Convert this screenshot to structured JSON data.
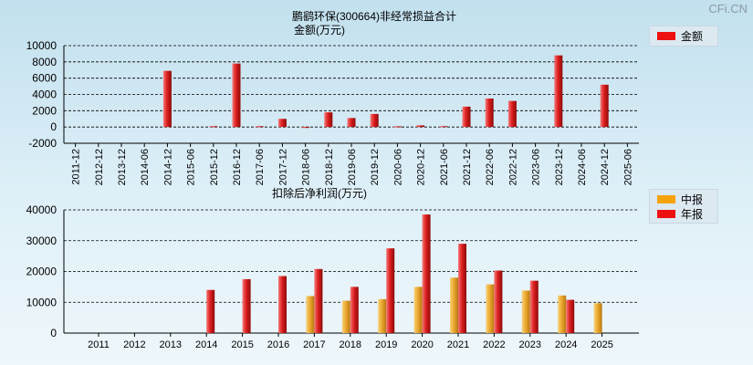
{
  "brand": "CFi.CN",
  "chart_data": [
    {
      "type": "bar",
      "title": "鹏鹞环保(300664)非经常损益合计",
      "subtitle": "金额(万元)",
      "categories": [
        "2011-12",
        "2012-12",
        "2013-12",
        "2014-06",
        "2014-12",
        "2015-06",
        "2015-12",
        "2016-12",
        "2017-06",
        "2017-12",
        "2018-06",
        "2018-12",
        "2019-06",
        "2019-12",
        "2020-06",
        "2020-12",
        "2021-06",
        "2021-12",
        "2022-06",
        "2022-12",
        "2023-06",
        "2023-12",
        "2024-06",
        "2024-12",
        "2025-06"
      ],
      "series": [
        {
          "name": "金额",
          "color": "#ee1111",
          "values": [
            null,
            null,
            null,
            null,
            6900,
            null,
            100,
            7800,
            100,
            1000,
            -50,
            1800,
            1100,
            1600,
            80,
            200,
            100,
            2500,
            3500,
            3200,
            null,
            8800,
            null,
            5200,
            null
          ]
        }
      ],
      "ylim": [
        -2000,
        10000
      ],
      "yticks": [
        -2000,
        0,
        2000,
        4000,
        6000,
        8000,
        10000
      ],
      "grid": true,
      "legend": "top-right"
    },
    {
      "type": "bar",
      "title": "扣除后净利润(万元)",
      "categories": [
        "2011",
        "2012",
        "2013",
        "2014",
        "2015",
        "2016",
        "2017",
        "2018",
        "2019",
        "2020",
        "2021",
        "2022",
        "2023",
        "2024",
        "2025"
      ],
      "series": [
        {
          "name": "中报",
          "color": "#f5a20a",
          "values": [
            null,
            null,
            null,
            null,
            null,
            null,
            12000,
            10500,
            11000,
            15000,
            18000,
            15800,
            13800,
            12200,
            9700
          ]
        },
        {
          "name": "年报",
          "color": "#ee1111",
          "values": [
            null,
            null,
            null,
            14000,
            17500,
            18500,
            20800,
            15000,
            27500,
            38500,
            29000,
            20300,
            17000,
            10800,
            null
          ]
        }
      ],
      "ylim": [
        0,
        40000
      ],
      "yticks": [
        0,
        10000,
        20000,
        30000,
        40000
      ],
      "grid": true,
      "legend": "top-right"
    }
  ]
}
